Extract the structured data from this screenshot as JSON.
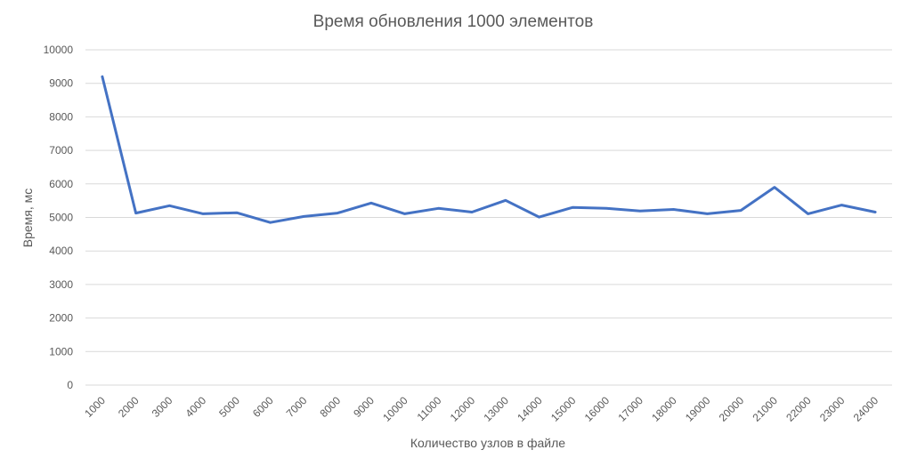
{
  "chart_data": {
    "type": "line",
    "title": "Время обновления 1000 элементов",
    "xlabel": "Количество узлов в файле",
    "ylabel": "Время, мс",
    "ylim": [
      0,
      10000
    ],
    "yticks": [
      0,
      1000,
      2000,
      3000,
      4000,
      5000,
      6000,
      7000,
      8000,
      9000,
      10000
    ],
    "grid": true,
    "legend": "none",
    "categories": [
      "1000",
      "2000",
      "3000",
      "4000",
      "5000",
      "6000",
      "7000",
      "8000",
      "9000",
      "10000",
      "11000",
      "12000",
      "13000",
      "14000",
      "15000",
      "16000",
      "17000",
      "18000",
      "19000",
      "20000",
      "21000",
      "22000",
      "23000",
      "24000"
    ],
    "series": [
      {
        "color": "#4472c4",
        "values": [
          9200,
          5130,
          5350,
          5110,
          5140,
          4850,
          5030,
          5130,
          5430,
          5110,
          5270,
          5160,
          5510,
          5010,
          5300,
          5270,
          5190,
          5240,
          5110,
          5210,
          5900,
          5110,
          5370,
          5160
        ]
      }
    ]
  }
}
